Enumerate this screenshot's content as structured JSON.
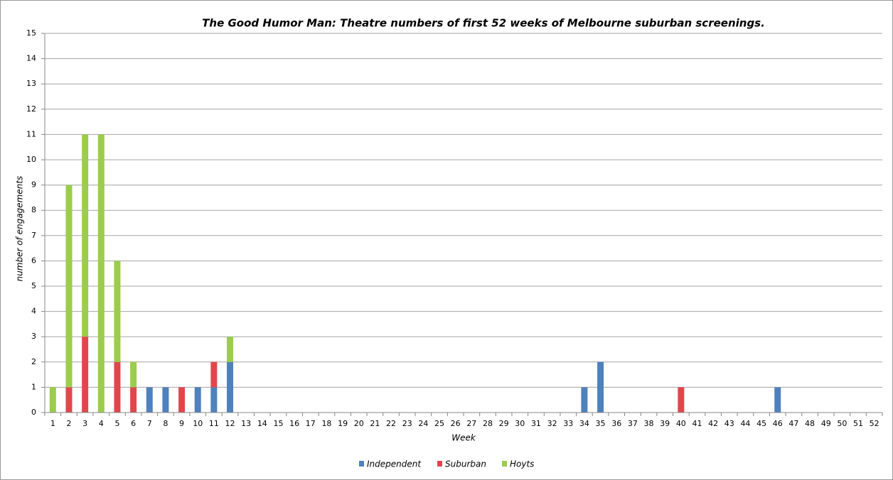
{
  "chart_data": {
    "type": "stacked_bar",
    "title": "The Good Humor Man: Theatre numbers of first 52 weeks of Melbourne suburban screenings.",
    "x_label": "Week",
    "y_label": "number of engagements",
    "categories": [
      "1",
      "2",
      "3",
      "4",
      "5",
      "6",
      "7",
      "8",
      "9",
      "10",
      "11",
      "12",
      "13",
      "14",
      "15",
      "16",
      "17",
      "18",
      "19",
      "20",
      "21",
      "22",
      "23",
      "24",
      "25",
      "26",
      "27",
      "28",
      "29",
      "30",
      "31",
      "32",
      "33",
      "34",
      "35",
      "36",
      "37",
      "38",
      "39",
      "40",
      "41",
      "42",
      "43",
      "44",
      "45",
      "46",
      "47",
      "48",
      "49",
      "50",
      "51",
      "52"
    ],
    "series": [
      {
        "name": "Independent",
        "color": "#4f81bd",
        "values": [
          0,
          0,
          0,
          0,
          0,
          0,
          1,
          1,
          0,
          1,
          1,
          2,
          0,
          0,
          0,
          0,
          0,
          0,
          0,
          0,
          0,
          0,
          0,
          0,
          0,
          0,
          0,
          0,
          0,
          0,
          0,
          0,
          0,
          1,
          2,
          0,
          0,
          0,
          0,
          0,
          0,
          0,
          0,
          0,
          0,
          1,
          0,
          0,
          0,
          0,
          0,
          0
        ]
      },
      {
        "name": "Suburban",
        "color": "#e0474c",
        "values": [
          0,
          1,
          3,
          0,
          2,
          1,
          0,
          0,
          1,
          0,
          1,
          0,
          0,
          0,
          0,
          0,
          0,
          0,
          0,
          0,
          0,
          0,
          0,
          0,
          0,
          0,
          0,
          0,
          0,
          0,
          0,
          0,
          0,
          0,
          0,
          0,
          0,
          0,
          0,
          1,
          0,
          0,
          0,
          0,
          0,
          0,
          0,
          0,
          0,
          0,
          0,
          0
        ]
      },
      {
        "name": "Hoyts",
        "color": "#9bcd4a",
        "values": [
          1,
          8,
          8,
          11,
          4,
          1,
          0,
          0,
          0,
          0,
          0,
          1,
          0,
          0,
          0,
          0,
          0,
          0,
          0,
          0,
          0,
          0,
          0,
          0,
          0,
          0,
          0,
          0,
          0,
          0,
          0,
          0,
          0,
          0,
          0,
          0,
          0,
          0,
          0,
          0,
          0,
          0,
          0,
          0,
          0,
          0,
          0,
          0,
          0,
          0,
          0,
          0
        ]
      }
    ],
    "ylim": [
      0,
      15
    ],
    "yticks": [
      0,
      1,
      2,
      3,
      4,
      5,
      6,
      7,
      8,
      9,
      10,
      11,
      12,
      13,
      14,
      15
    ],
    "grid": true
  }
}
